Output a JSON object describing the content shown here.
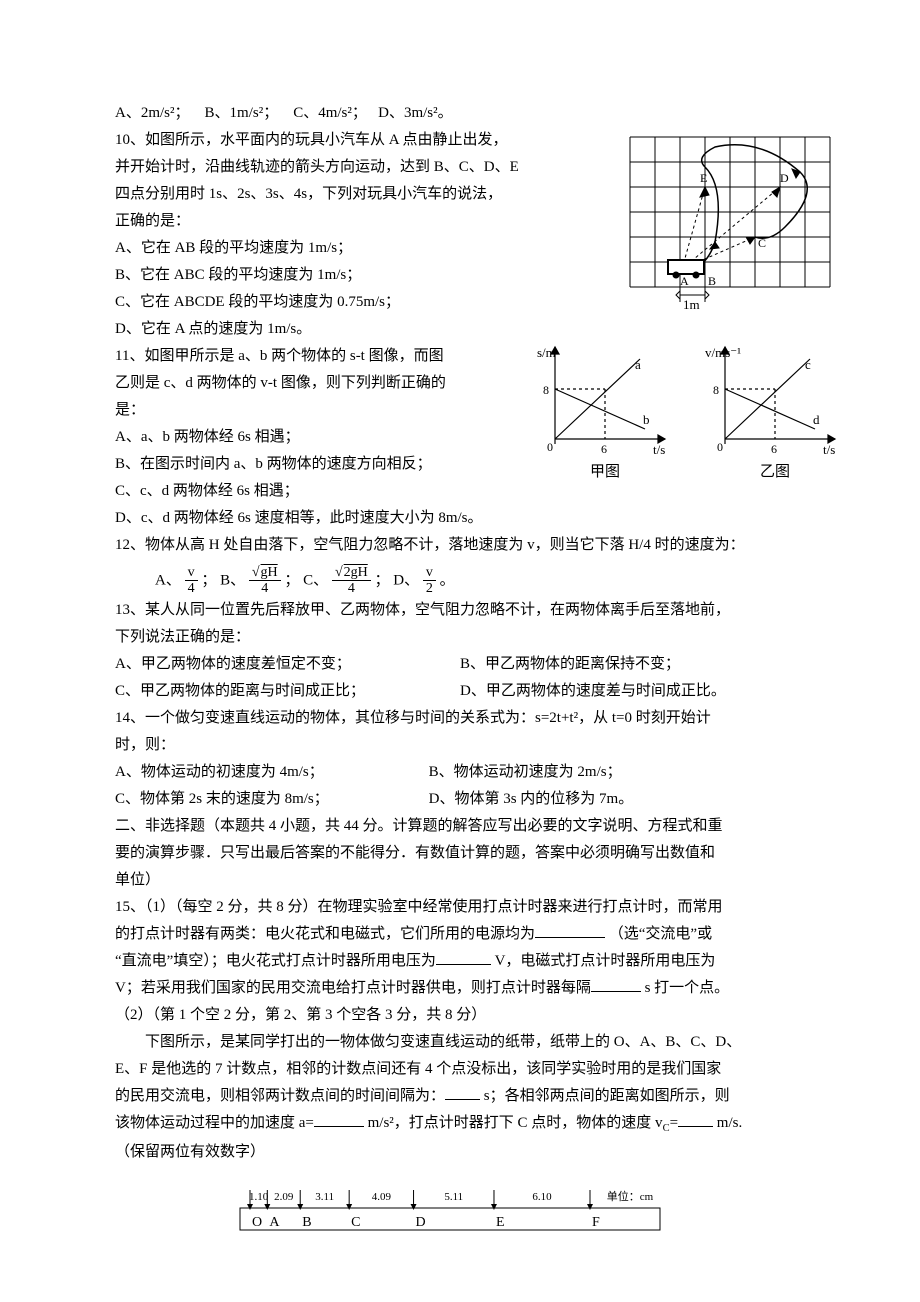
{
  "q9": {
    "A": "A、2m/s²；",
    "B": "B、1m/s²；",
    "C": "C、4m/s²；",
    "D": "D、3m/s²。"
  },
  "q10": {
    "stem1": "10、如图所示，水平面内的玩具小汽车从 A 点由静止出发，",
    "stem2": "并开始计时，沿曲线轨迹的箭头方向运动，达到 B、C、D、E",
    "stem3": "四点分别用时 1s、2s、3s、4s，下列对玩具小汽车的说法，",
    "stem4": "正确的是：",
    "A": "A、它在 AB 段的平均速度为 1m/s；",
    "B": "B、它在 ABC 段的平均速度为 1m/s；",
    "C": "C、它在 ABCDE 段的平均速度为 0.75m/s；",
    "D": "D、它在 A 点的速度为 1m/s。",
    "figure": {
      "grid_color": "#000000",
      "labels": [
        "A",
        "B",
        "C",
        "D",
        "E"
      ],
      "scale_label": "1m",
      "bg": "#ffffff"
    }
  },
  "q11": {
    "stem1": "11、如图甲所示是 a、b 两个物体的 s-t 图像，而图",
    "stem2": "乙则是 c、d 两物体的 v-t 图像，则下列判断正确的",
    "stem3": "是：",
    "A": "A、a、b 两物体经 6s 相遇；",
    "B": "B、在图示时间内 a、b 两物体的速度方向相反；",
    "C": "C、c、d 两物体经 6s 相遇；",
    "D": "D、c、d 两物体经 6s 速度相等，此时速度大小为 8m/s。",
    "fig_left": {
      "ylabel": "s/m",
      "xlabel": "t/s",
      "yval": "8",
      "xval": "6",
      "lines": [
        "a",
        "b"
      ],
      "caption": "甲图"
    },
    "fig_right": {
      "ylabel": "v/ms⁻¹",
      "xlabel": "t/s",
      "yval": "8",
      "xval": "6",
      "lines": [
        "c",
        "d"
      ],
      "caption": "乙图"
    }
  },
  "q12": {
    "stem": "12、物体从高 H 处自由落下，空气阻力忽略不计，落地速度为 v，则当它下落 H/4 时的速度为：",
    "A_pre": "A、",
    "A_num": "v",
    "A_den": "4",
    "B_pre": "；  B、",
    "B_num": "gH",
    "B_den": "4",
    "C_pre": "；   C、",
    "C_num": "2gH",
    "C_den": "4",
    "D_pre": "；   D、",
    "D_num": "v",
    "D_den": "2",
    "tail": " 。"
  },
  "q13": {
    "stem1": "13、某人从同一位置先后释放甲、乙两物体，空气阻力忽略不计，在两物体离手后至落地前，",
    "stem2": "下列说法正确的是：",
    "A": "A、甲乙两物体的速度差恒定不变；",
    "B": "B、甲乙两物体的距离保持不变；",
    "C": "C、甲乙两物体的距离与时间成正比；",
    "D": "D、甲乙两物体的速度差与时间成正比。"
  },
  "q14": {
    "stem1": "14、一个做匀变速直线运动的物体，其位移与时间的关系式为：s=2t+t²，从 t=0 时刻开始计",
    "stem2": "时，则：",
    "A": "A、物体运动的初速度为 4m/s；",
    "B": "B、物体运动初速度为 2m/s；",
    "C": "C、物体第 2s 末的速度为 8m/s；",
    "D": "D、物体第 3s 内的位移为 7m。"
  },
  "sec2": {
    "header1": "二、非选择题（本题共 4 小题，共 44 分。计算题的解答应写出必要的文字说明、方程式和重",
    "header2": "要的演算步骤．只写出最后答案的不能得分．有数值计算的题，答案中必须明确写出数值和",
    "header3": "单位）"
  },
  "q15": {
    "p1a": "15、（1）（每空 2 分，共 8 分）在物理实验室中经常使用打点计时器来进行打点计时，而常用",
    "p1b": "的打点计时器有两类：电火花式和电磁式，它们所用的电源均为",
    "p1c": "（选“交流电”或",
    "p1d": "“直流电”填空）；电火花式打点计时器所用电压为",
    "p1e": "V，电磁式打点计时器所用电压为",
    "p1f": "V；若采用我们国家的民用交流电给打点计时器供电，则打点计时器每隔",
    "p1g": " s 打一个点。",
    "p2a": "（2）（第 1 个空 2 分，第 2、第 3 个空各 3 分，共 8 分）",
    "p2b": "　　下图所示，是某同学打出的一物体做匀变速直线运动的纸带，纸带上的 O、A、B、C、D、",
    "p2c": "E、F 是他选的 7 计数点，相邻的计数点间还有 4 个点没标出，该同学实验时用的是我们国家",
    "p2d": "的民用交流电，则相邻两计数点间的时间间隔为：",
    "p2e": "s；各相邻两点间的距离如图所示，则",
    "p2f": "该物体运动过程中的加速度 a=",
    "p2g": "m/s²，打点计时器打下 C 点时，物体的速度 v",
    "p2h": "m/s.",
    "p2i": "（保留两位有效数字）",
    "tape": {
      "values": [
        "1.10",
        "2.09",
        "3.11",
        "4.09",
        "5.11",
        "6.10"
      ],
      "unit": "单位：cm",
      "points": [
        "O",
        "A",
        "B",
        "C",
        "D",
        "E",
        "F"
      ],
      "positions": [
        0,
        11.0,
        31.9,
        63.0,
        103.9,
        155.0,
        216.0
      ],
      "stroke": "#000000"
    }
  }
}
